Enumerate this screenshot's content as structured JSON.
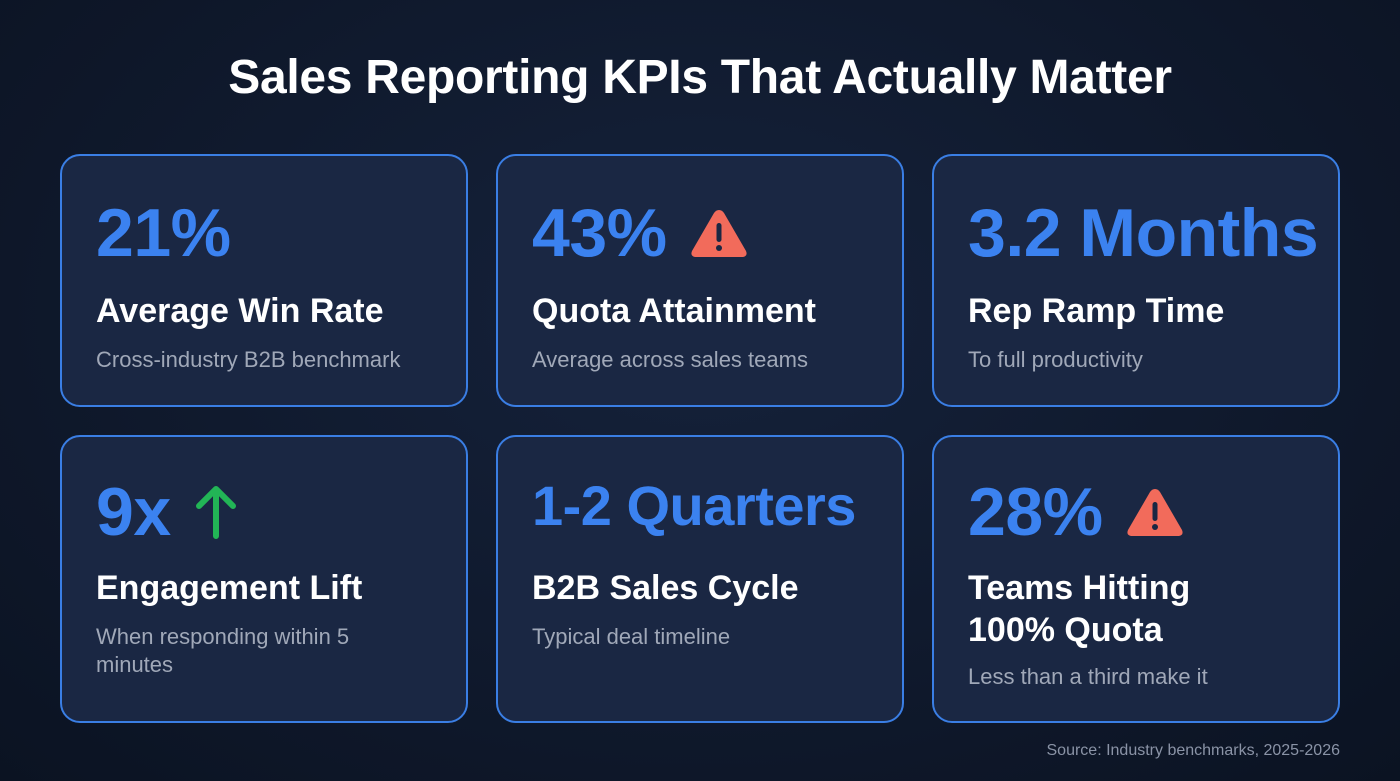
{
  "title": "Sales Reporting KPIs That Actually Matter",
  "colors": {
    "accent": "#3b82f0",
    "warning": "#f26b5b",
    "up": "#22b556",
    "border": "#3a7ee4"
  },
  "cards": [
    {
      "value": "21%",
      "label": "Average Win Rate",
      "sub": "Cross-industry B2B benchmark",
      "icon": ""
    },
    {
      "value": "43%",
      "label": "Quota Attainment",
      "sub": "Average across sales teams",
      "icon": "warning-icon"
    },
    {
      "value": "3.2 Months",
      "label": "Rep Ramp Time",
      "sub": "To full productivity",
      "icon": ""
    },
    {
      "value": "9x",
      "label": "Engagement Lift",
      "sub": "When responding within 5 minutes",
      "icon": "arrow-up-icon"
    },
    {
      "value": "1-2 Quarters",
      "label": "B2B Sales Cycle",
      "sub": "Typical deal timeline",
      "icon": ""
    },
    {
      "value": "28%",
      "label": "Teams Hitting 100% Quota",
      "sub": "Less than a third make it",
      "icon": "warning-icon"
    }
  ],
  "source": "Source: Industry benchmarks, 2025-2026"
}
